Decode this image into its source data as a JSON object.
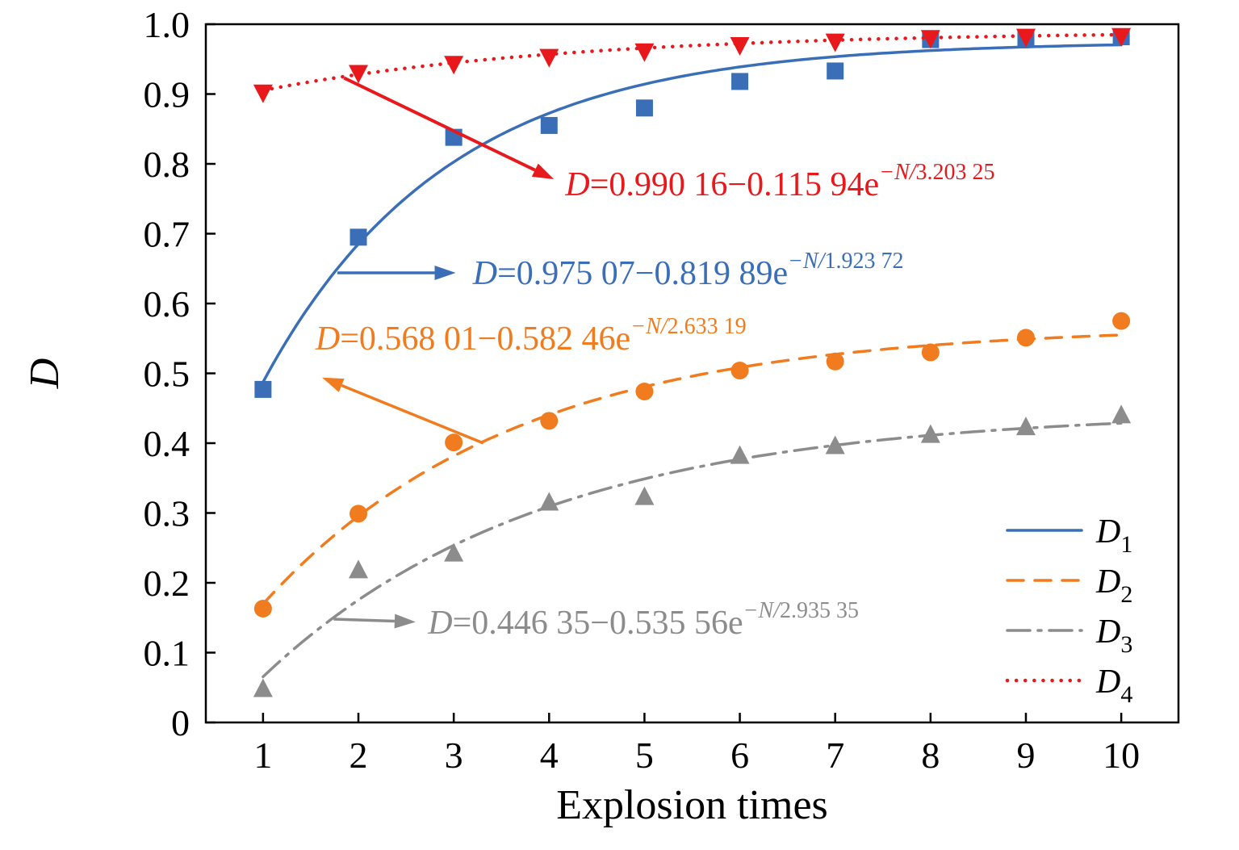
{
  "chart_data": {
    "type": "scatter",
    "title": "",
    "xlabel": "Explosion times",
    "ylabel": "D",
    "xlim": [
      0.4,
      10.6
    ],
    "ylim": [
      0,
      1.0
    ],
    "xticks": [
      1,
      2,
      3,
      4,
      5,
      6,
      7,
      8,
      9,
      10
    ],
    "yticks": [
      0,
      0.1,
      0.2,
      0.3,
      0.4,
      0.5,
      0.6,
      0.7,
      0.8,
      0.9,
      1.0
    ],
    "ytick_labels": [
      "0",
      "0.1",
      "0.2",
      "0.3",
      "0.4",
      "0.5",
      "0.6",
      "0.7",
      "0.8",
      "0.9",
      "1.0"
    ],
    "grid": false,
    "legend_position": "lower right",
    "x": [
      1,
      2,
      3,
      4,
      5,
      6,
      7,
      8,
      9,
      10
    ],
    "series": [
      {
        "name": "D1",
        "label_main": "D",
        "label_sub": "1",
        "color": "#3a6fb8",
        "marker": "square",
        "line_style": "solid",
        "values": [
          0.477,
          0.695,
          0.838,
          0.855,
          0.88,
          0.918,
          0.933,
          0.978,
          0.98,
          0.982
        ],
        "fit": {
          "a": 0.97507,
          "b": 0.81989,
          "c": 1.92372
        }
      },
      {
        "name": "D2",
        "label_main": "D",
        "label_sub": "2",
        "color": "#f07c1f",
        "marker": "circle",
        "line_style": "dashed",
        "values": [
          0.163,
          0.299,
          0.401,
          0.432,
          0.474,
          0.504,
          0.517,
          0.53,
          0.551,
          0.575
        ],
        "fit": {
          "a": 0.56801,
          "b": 0.58246,
          "c": 2.63319
        }
      },
      {
        "name": "D3",
        "label_main": "D",
        "label_sub": "3",
        "color": "#8c8c8c",
        "marker": "triangle-up",
        "line_style": "dashdot",
        "values": [
          0.048,
          0.218,
          0.242,
          0.315,
          0.323,
          0.382,
          0.396,
          0.412,
          0.423,
          0.44
        ],
        "fit": {
          "a": 0.44635,
          "b": 0.53556,
          "c": 2.93535
        }
      },
      {
        "name": "D4",
        "label_main": "D",
        "label_sub": "4",
        "color": "#e8191c",
        "marker": "triangle-down",
        "line_style": "dotted",
        "values": [
          0.902,
          0.93,
          0.943,
          0.953,
          0.961,
          0.97,
          0.975,
          0.98,
          0.982,
          0.983
        ],
        "fit": {
          "a": 0.99016,
          "b": 0.11594,
          "c": 3.20325
        }
      }
    ],
    "annotations": [
      {
        "series": "D4",
        "color": "#e8191c",
        "text_d": "D",
        "text_base": "=0.990 16−0.115 94e",
        "text_sup_var": "−N/",
        "text_sup_num": "3.203 25",
        "pos": {
          "x": 4.17,
          "y": 0.755
        },
        "arrow": {
          "x1": 1.85,
          "y1": 0.923,
          "x2": 4.05,
          "y2": 0.778
        },
        "arrow_width": 4
      },
      {
        "series": "D1",
        "color": "#3a6fb8",
        "text_d": "D",
        "text_base": "=0.975 07−0.819 89e",
        "text_sup_var": "−N/",
        "text_sup_num": "1.923 72",
        "pos": {
          "x": 3.2,
          "y": 0.628
        },
        "arrow": {
          "x1": 1.78,
          "y1": 0.644,
          "x2": 3.02,
          "y2": 0.644
        },
        "arrow_width": 3.5
      },
      {
        "series": "D2",
        "color": "#f07c1f",
        "text_d": "D",
        "text_base": "=0.568 01−0.582 46e",
        "text_sup_var": "−N/",
        "text_sup_num": "2.633 19",
        "pos": {
          "x": 1.55,
          "y": 0.534
        },
        "arrow": {
          "x1": 3.31,
          "y1": 0.4,
          "x2": 1.62,
          "y2": 0.494
        },
        "arrow_width": 3.5
      },
      {
        "series": "D3",
        "color": "#8c8c8c",
        "text_d": "D",
        "text_base": "=0.446 35−0.535 56e",
        "text_sup_var": "−N/",
        "text_sup_num": "2.935 35",
        "pos": {
          "x": 2.73,
          "y": 0.127
        },
        "arrow": {
          "x1": 1.74,
          "y1": 0.148,
          "x2": 2.6,
          "y2": 0.144
        },
        "arrow_width": 3.5
      }
    ],
    "legend": {
      "items": [
        {
          "main": "D",
          "sub": "1"
        },
        {
          "main": "D",
          "sub": "2"
        },
        {
          "main": "D",
          "sub": "3"
        },
        {
          "main": "D",
          "sub": "4"
        }
      ]
    }
  }
}
